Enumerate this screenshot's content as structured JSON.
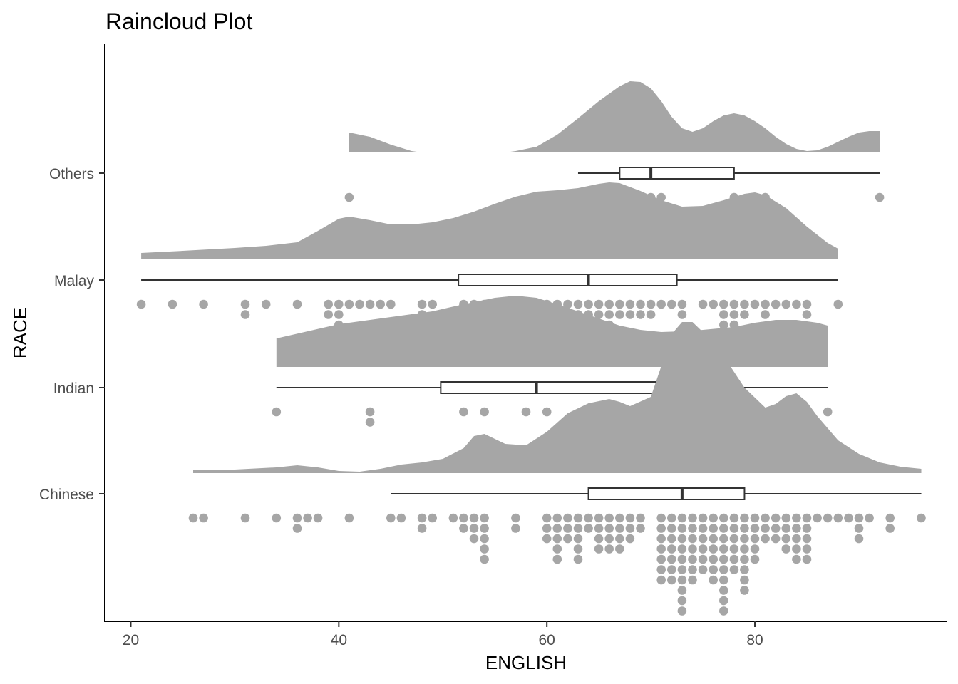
{
  "chart_data": {
    "type": "raincloud",
    "title": "Raincloud Plot",
    "xlabel": "ENGLISH",
    "ylabel": "RACE",
    "xlim": [
      17.5,
      98.5
    ],
    "x_ticks": [
      20,
      40,
      60,
      80
    ],
    "categories": [
      "Chinese",
      "Indian",
      "Malay",
      "Others"
    ],
    "grid": false,
    "legend": "none",
    "colors": {
      "cloud": "#a6a6a6",
      "rain": "#a6a6a6",
      "box_stroke": "#333333",
      "box_fill": "#ffffff",
      "axis": "#000000"
    },
    "series": [
      {
        "name": "Others",
        "range": [
          41,
          92
        ],
        "box": {
          "min": 63,
          "q1": 67,
          "median": 70,
          "q3": 78,
          "max": 92
        },
        "density": {
          "x": [
            41,
            43,
            45,
            47,
            48,
            49,
            51,
            53,
            55,
            56,
            57,
            59,
            61,
            63,
            65,
            67,
            68,
            69,
            70,
            71,
            72,
            73,
            74,
            75,
            76,
            77,
            78,
            79,
            80,
            81,
            82,
            83,
            84,
            85,
            86,
            87,
            88,
            89,
            90,
            91,
            92
          ],
          "y": [
            0.28,
            0.22,
            0.11,
            0.02,
            0.0,
            0.0,
            0.0,
            0.0,
            0.0,
            0.0,
            0.02,
            0.08,
            0.25,
            0.48,
            0.72,
            0.93,
            1.0,
            0.99,
            0.9,
            0.72,
            0.5,
            0.34,
            0.29,
            0.34,
            0.44,
            0.52,
            0.55,
            0.52,
            0.44,
            0.34,
            0.22,
            0.12,
            0.05,
            0.02,
            0.03,
            0.08,
            0.15,
            0.22,
            0.28,
            0.3,
            0.3
          ]
        },
        "points": [
          41,
          63,
          67,
          68,
          70,
          71,
          78,
          81,
          92
        ]
      },
      {
        "name": "Malay",
        "range": [
          21,
          88
        ],
        "box": {
          "min": 21,
          "q1": 51.5,
          "median": 64,
          "q3": 72.5,
          "max": 88
        },
        "density": {
          "x": [
            21,
            25,
            30,
            33,
            36,
            38,
            40,
            41,
            43,
            45,
            47,
            49,
            51,
            53,
            55,
            57,
            59,
            61,
            63,
            65,
            66,
            67,
            69,
            71,
            73,
            75,
            77,
            79,
            80,
            81,
            83,
            85,
            87,
            88
          ],
          "y": [
            0.09,
            0.12,
            0.16,
            0.19,
            0.24,
            0.4,
            0.57,
            0.6,
            0.55,
            0.49,
            0.49,
            0.52,
            0.58,
            0.67,
            0.78,
            0.88,
            0.95,
            0.97,
            1.0,
            1.06,
            1.08,
            1.07,
            0.96,
            0.83,
            0.74,
            0.75,
            0.83,
            0.92,
            0.94,
            0.9,
            0.72,
            0.46,
            0.23,
            0.15
          ]
        },
        "points": [
          21,
          24,
          27,
          31,
          31,
          33,
          36,
          39,
          39,
          40,
          40,
          40,
          40,
          41,
          42,
          43,
          44,
          45,
          48,
          48,
          49,
          52,
          53,
          54,
          55,
          55,
          56,
          57,
          57,
          58,
          58,
          59,
          59,
          60,
          60,
          61,
          61,
          62,
          62,
          63,
          63,
          64,
          64,
          64,
          65,
          65,
          65,
          66,
          66,
          66,
          67,
          67,
          68,
          68,
          69,
          69,
          70,
          70,
          71,
          72,
          73,
          73,
          75,
          76,
          77,
          77,
          77,
          78,
          78,
          78,
          78,
          79,
          79,
          80,
          81,
          81,
          82,
          83,
          84,
          85,
          85,
          88
        ]
      },
      {
        "name": "Indian",
        "range": [
          34,
          87
        ],
        "box": {
          "min": 34,
          "q1": 49.8,
          "median": 59,
          "q3": 74.3,
          "max": 87
        },
        "density": {
          "x": [
            34,
            37,
            40,
            43,
            46,
            49,
            52,
            55,
            57,
            59,
            61,
            63,
            65,
            67,
            69,
            71,
            73,
            75,
            78,
            80,
            82,
            84,
            86,
            87
          ],
          "y": [
            0.4,
            0.5,
            0.6,
            0.66,
            0.72,
            0.78,
            0.88,
            0.97,
            1.0,
            0.97,
            0.88,
            0.78,
            0.68,
            0.58,
            0.52,
            0.49,
            0.5,
            0.52,
            0.56,
            0.62,
            0.66,
            0.66,
            0.62,
            0.58
          ]
        },
        "points": [
          34,
          43,
          43,
          52,
          54,
          58,
          60,
          64,
          78,
          83,
          87
        ]
      },
      {
        "name": "Chinese",
        "range": [
          26,
          96
        ],
        "box": {
          "min": 45,
          "q1": 64,
          "median": 73,
          "q3": 79,
          "max": 96
        },
        "density": {
          "x": [
            26,
            30,
            34,
            36,
            38,
            40,
            42,
            44,
            46,
            48,
            50,
            52,
            53,
            54,
            56,
            58,
            60,
            62,
            64,
            66,
            67,
            68,
            70,
            71,
            72,
            73,
            74,
            75,
            76,
            77,
            79,
            81,
            82,
            83,
            84,
            85,
            86,
            88,
            90,
            92,
            94,
            96
          ],
          "y": [
            0.04,
            0.05,
            0.08,
            0.11,
            0.08,
            0.03,
            0.02,
            0.06,
            0.12,
            0.15,
            0.2,
            0.35,
            0.52,
            0.55,
            0.41,
            0.39,
            0.58,
            0.84,
            0.98,
            1.04,
            1.0,
            0.94,
            1.07,
            1.5,
            1.95,
            2.12,
            2.12,
            1.98,
            1.82,
            1.64,
            1.2,
            0.92,
            0.97,
            1.08,
            1.12,
            1.0,
            0.8,
            0.46,
            0.27,
            0.15,
            0.09,
            0.06
          ]
        },
        "points": [
          26,
          27,
          31,
          34,
          36,
          36,
          37,
          38,
          41,
          45,
          46,
          48,
          48,
          49,
          51,
          52,
          52,
          53,
          53,
          53,
          54,
          54,
          54,
          54,
          54,
          57,
          57,
          60,
          60,
          60,
          61,
          61,
          61,
          61,
          61,
          62,
          62,
          62,
          63,
          63,
          63,
          63,
          63,
          64,
          64,
          65,
          65,
          65,
          65,
          66,
          66,
          66,
          66,
          67,
          67,
          67,
          67,
          68,
          68,
          68,
          69,
          69,
          71,
          71,
          71,
          71,
          71,
          71,
          71,
          72,
          72,
          72,
          72,
          72,
          72,
          72,
          73,
          73,
          73,
          73,
          73,
          73,
          73,
          73,
          73,
          73,
          74,
          74,
          74,
          74,
          74,
          74,
          74,
          75,
          75,
          75,
          75,
          75,
          75,
          76,
          76,
          76,
          76,
          76,
          76,
          76,
          77,
          77,
          77,
          77,
          77,
          77,
          77,
          77,
          77,
          77,
          78,
          78,
          78,
          78,
          78,
          78,
          79,
          79,
          79,
          79,
          79,
          79,
          79,
          79,
          80,
          80,
          80,
          80,
          80,
          81,
          81,
          81,
          82,
          82,
          82,
          83,
          83,
          83,
          83,
          84,
          84,
          84,
          84,
          84,
          85,
          85,
          85,
          85,
          85,
          86,
          87,
          88,
          89,
          90,
          90,
          90,
          91,
          93,
          93,
          96
        ]
      }
    ]
  }
}
